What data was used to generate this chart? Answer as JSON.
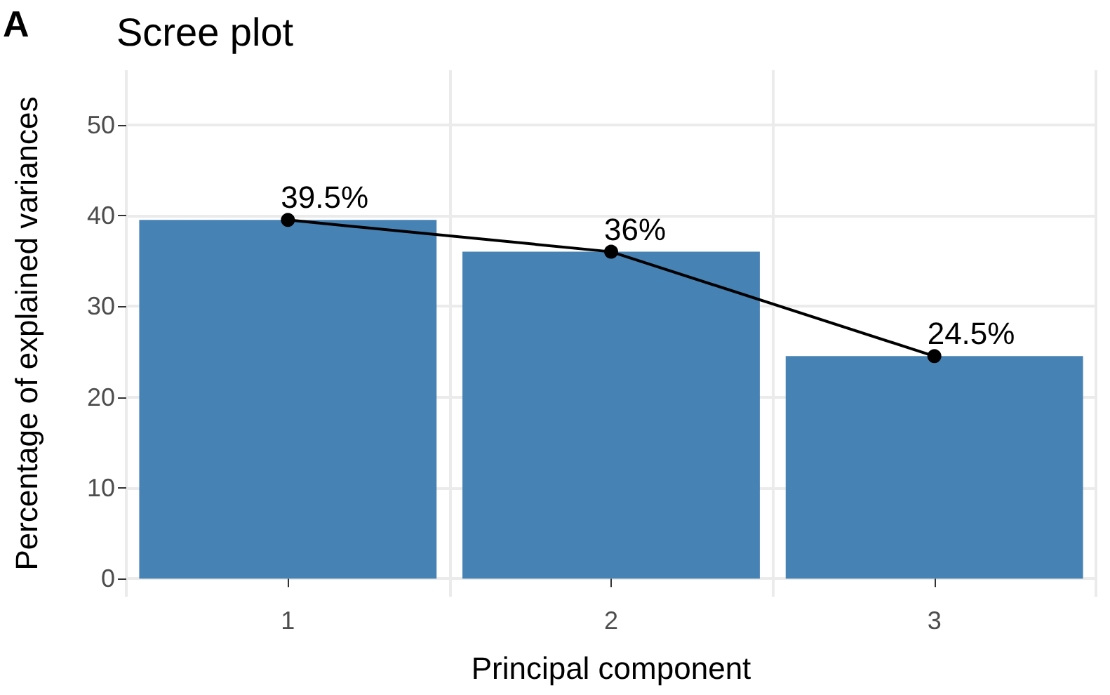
{
  "chart_data": {
    "type": "bar",
    "title": "Scree plot",
    "xlabel": "Principal component",
    "ylabel": "Percentage of explained variances",
    "annotations": [
      "A"
    ],
    "categories": [
      "1",
      "2",
      "3"
    ],
    "series": [
      {
        "color": "#4682b4",
        "values": [
          39.5,
          36,
          24.5
        ]
      },
      {
        "type": "line",
        "color": "#000000",
        "values": [
          39.5,
          36,
          24.5
        ],
        "value_labels": [
          "39.5%",
          "36%",
          "24.5%"
        ],
        "marker": "circle"
      }
    ],
    "ylim": [
      -2,
      56
    ],
    "yticks": [
      0,
      10,
      20,
      30,
      40,
      50
    ],
    "grid": true
  }
}
